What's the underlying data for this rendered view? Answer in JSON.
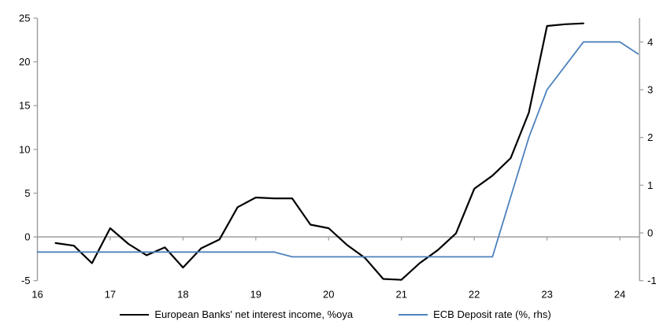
{
  "chart_data": {
    "type": "line",
    "title": "",
    "x_axis": {
      "ticks": [
        16,
        17,
        18,
        19,
        20,
        21,
        22,
        23,
        24
      ],
      "min": 16,
      "max": 24.27,
      "tick_position": "on-zero-line"
    },
    "left_axis": {
      "ticks": [
        -5,
        0,
        5,
        10,
        15,
        20,
        25
      ],
      "min": -5,
      "max": 25
    },
    "right_axis": {
      "ticks": [
        -1,
        0,
        1,
        2,
        3,
        4
      ],
      "min": -1,
      "max": 4.5
    },
    "zero_line": true,
    "grid": false,
    "legend_position": "bottom-center",
    "colors": {
      "nii_line": "#000000",
      "ecb_line": "#4d82be",
      "axis": "#9b9b9b",
      "zero_line": "#a6a6a6"
    },
    "series": [
      {
        "name": "European Banks' net interest income, %oya",
        "axis": "left",
        "color": "#000000",
        "stroke_width": 2.2,
        "x": [
          16.25,
          16.5,
          16.75,
          17.0,
          17.25,
          17.5,
          17.75,
          18.0,
          18.25,
          18.5,
          18.75,
          19.0,
          19.25,
          19.5,
          19.75,
          20.0,
          20.25,
          20.5,
          20.75,
          21.0,
          21.25,
          21.5,
          21.75,
          22.0,
          22.25,
          22.5,
          22.75,
          23.0,
          23.25,
          23.5
        ],
        "y": [
          -0.7,
          -1.0,
          -3.0,
          1.0,
          -0.8,
          -2.1,
          -1.2,
          -3.5,
          -1.3,
          -0.3,
          3.4,
          4.5,
          4.4,
          4.4,
          1.4,
          1.0,
          -0.9,
          -2.4,
          -4.8,
          -4.9,
          -3.0,
          -1.5,
          0.4,
          5.5,
          7.0,
          9.0,
          14.2,
          24.1,
          24.3,
          24.4
        ]
      },
      {
        "name": "ECB Deposit rate (%, rhs)",
        "axis": "right",
        "color": "#4d82be",
        "stroke_width": 1.8,
        "x": [
          16.0,
          16.25,
          16.5,
          16.75,
          17.0,
          17.25,
          17.5,
          17.75,
          18.0,
          18.25,
          18.5,
          18.75,
          19.0,
          19.25,
          19.5,
          19.75,
          20.0,
          20.25,
          20.5,
          20.75,
          21.0,
          21.25,
          21.5,
          21.75,
          22.0,
          22.25,
          22.5,
          22.75,
          23.0,
          23.25,
          23.5,
          23.75,
          24.0,
          24.25
        ],
        "y": [
          -0.4,
          -0.4,
          -0.4,
          -0.4,
          -0.4,
          -0.4,
          -0.4,
          -0.4,
          -0.4,
          -0.4,
          -0.4,
          -0.4,
          -0.4,
          -0.4,
          -0.5,
          -0.5,
          -0.5,
          -0.5,
          -0.5,
          -0.5,
          -0.5,
          -0.5,
          -0.5,
          -0.5,
          -0.5,
          -0.5,
          0.75,
          2.0,
          3.0,
          3.5,
          4.0,
          4.0,
          4.0,
          3.75
        ]
      }
    ]
  }
}
